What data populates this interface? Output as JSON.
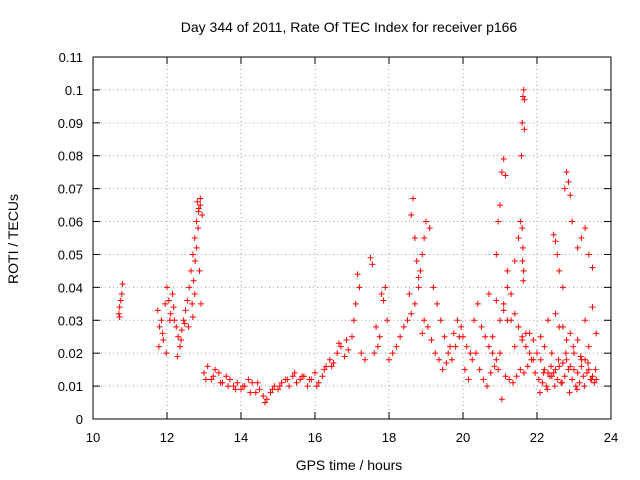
{
  "chart_data": {
    "type": "scatter",
    "title": "Day 344 of 2011, Rate Of TEC Index for receiver p166",
    "xlabel": "GPS time / hours",
    "ylabel": "ROTI / TECUs",
    "xlim": [
      10,
      24
    ],
    "ylim": [
      0,
      0.11
    ],
    "xticks": [
      10,
      12,
      14,
      16,
      18,
      20,
      22,
      24
    ],
    "xtick_labels": [
      "10",
      "12",
      "14",
      "16",
      "18",
      "20",
      "22",
      "24"
    ],
    "yticks": [
      0,
      0.01,
      0.02,
      0.03,
      0.04,
      0.05,
      0.06,
      0.07,
      0.08,
      0.09,
      0.1,
      0.11
    ],
    "ytick_labels": [
      "0",
      "0.01",
      "0.02",
      "0.03",
      "0.04",
      "0.05",
      "0.06",
      "0.07",
      "0.08",
      "0.09",
      "0.1",
      "0.11"
    ],
    "grid": true,
    "marker": "+",
    "color": "#ff0000",
    "series": [
      {
        "name": "ROTI",
        "x": [
          10.7,
          10.72,
          10.75,
          10.78,
          10.8,
          10.72,
          11.75,
          11.8,
          11.85,
          11.9,
          11.95,
          12.0,
          12.05,
          12.1,
          12.15,
          12.2,
          12.25,
          12.3,
          12.35,
          12.4,
          12.45,
          12.5,
          12.55,
          12.6,
          12.65,
          12.7,
          12.75,
          12.8,
          12.85,
          12.9,
          12.95,
          11.78,
          11.88,
          11.98,
          12.08,
          12.18,
          12.28,
          12.38,
          12.48,
          12.58,
          12.68,
          12.72,
          12.76,
          12.8,
          12.84,
          12.88,
          12.92,
          12.82,
          12.86,
          12.9,
          12.75,
          12.7,
          13.0,
          13.1,
          13.2,
          13.3,
          13.4,
          13.5,
          13.6,
          13.7,
          13.8,
          13.9,
          14.0,
          14.1,
          14.2,
          14.3,
          14.4,
          14.5,
          14.6,
          14.7,
          14.8,
          14.9,
          15.0,
          15.1,
          15.2,
          15.3,
          15.4,
          15.5,
          15.6,
          15.7,
          15.8,
          15.9,
          16.0,
          16.1,
          16.2,
          16.3,
          16.4,
          16.5,
          16.6,
          16.7,
          16.8,
          16.9,
          13.05,
          13.25,
          13.45,
          13.65,
          13.85,
          14.05,
          14.25,
          14.45,
          14.65,
          14.85,
          15.05,
          15.25,
          15.45,
          15.65,
          15.85,
          16.05,
          16.25,
          16.45,
          16.65,
          16.85,
          17.0,
          17.05,
          17.1,
          17.15,
          17.2,
          17.5,
          17.55,
          17.6,
          17.7,
          17.75,
          17.8,
          17.85,
          17.9,
          17.95,
          17.65,
          17.25,
          17.35,
          18.0,
          18.1,
          18.2,
          18.3,
          18.4,
          18.5,
          18.6,
          18.7,
          18.8,
          18.85,
          18.9,
          18.95,
          19.0,
          19.1,
          19.2,
          19.3,
          19.4,
          19.5,
          19.6,
          19.7,
          19.8,
          19.9,
          18.55,
          18.6,
          18.65,
          18.7,
          18.75,
          18.8,
          18.9,
          18.95,
          19.05,
          19.15,
          19.25,
          19.35,
          19.45,
          19.55,
          19.65,
          19.75,
          19.85,
          19.95,
          20.0,
          20.1,
          20.2,
          20.3,
          20.4,
          20.5,
          20.6,
          20.7,
          20.8,
          20.9,
          21.0,
          21.1,
          21.2,
          21.3,
          21.4,
          21.5,
          21.6,
          21.7,
          21.8,
          21.9,
          20.05,
          20.15,
          20.25,
          20.35,
          20.45,
          20.55,
          20.65,
          20.75,
          20.85,
          20.95,
          21.05,
          21.15,
          21.25,
          21.35,
          21.45,
          21.55,
          21.65,
          21.75,
          21.85,
          21.95,
          20.9,
          20.95,
          21.0,
          21.05,
          21.1,
          21.15,
          21.2,
          21.4,
          21.5,
          21.55,
          21.6,
          21.62,
          21.64,
          21.66,
          21.58,
          21.6,
          21.62,
          21.64,
          21.66,
          21.63,
          21.61,
          20.8,
          21.0,
          21.2,
          21.4,
          21.6,
          21.8,
          20.7,
          20.9,
          21.1,
          21.3,
          21.5,
          21.7,
          21.9,
          22.0,
          22.1,
          22.2,
          22.3,
          22.4,
          22.5,
          22.6,
          22.7,
          22.8,
          22.9,
          23.0,
          23.1,
          23.2,
          23.3,
          23.4,
          23.5,
          23.6,
          22.05,
          22.15,
          22.25,
          22.35,
          22.45,
          22.55,
          22.65,
          22.75,
          22.85,
          22.95,
          23.05,
          23.15,
          23.25,
          23.35,
          23.45,
          23.55,
          22.45,
          22.5,
          22.55,
          22.6,
          22.7,
          22.75,
          22.8,
          22.85,
          22.9,
          22.95,
          23.1,
          23.2,
          23.3,
          23.4,
          23.5,
          22.1,
          22.3,
          22.5,
          22.7,
          22.9,
          23.1,
          23.3,
          23.5,
          22.2,
          22.4,
          22.6,
          22.8,
          23.0,
          23.2,
          23.4,
          23.6,
          22.08,
          22.28,
          22.48,
          22.68,
          22.88,
          23.08,
          23.28,
          23.48,
          22.18,
          22.38,
          22.58,
          22.78,
          22.98,
          23.18,
          23.38,
          23.58
        ],
        "y": [
          0.032,
          0.034,
          0.036,
          0.038,
          0.041,
          0.031,
          0.033,
          0.028,
          0.03,
          0.024,
          0.035,
          0.04,
          0.036,
          0.032,
          0.038,
          0.03,
          0.028,
          0.025,
          0.022,
          0.027,
          0.03,
          0.033,
          0.036,
          0.04,
          0.045,
          0.05,
          0.055,
          0.06,
          0.063,
          0.065,
          0.062,
          0.022,
          0.026,
          0.02,
          0.03,
          0.034,
          0.019,
          0.024,
          0.029,
          0.028,
          0.035,
          0.042,
          0.048,
          0.052,
          0.058,
          0.045,
          0.035,
          0.066,
          0.064,
          0.067,
          0.038,
          0.031,
          0.014,
          0.016,
          0.012,
          0.015,
          0.014,
          0.011,
          0.013,
          0.012,
          0.01,
          0.011,
          0.009,
          0.01,
          0.012,
          0.011,
          0.008,
          0.009,
          0.007,
          0.006,
          0.008,
          0.01,
          0.009,
          0.011,
          0.012,
          0.01,
          0.013,
          0.011,
          0.012,
          0.013,
          0.01,
          0.012,
          0.014,
          0.011,
          0.013,
          0.016,
          0.018,
          0.017,
          0.02,
          0.022,
          0.019,
          0.021,
          0.012,
          0.013,
          0.011,
          0.01,
          0.009,
          0.01,
          0.008,
          0.011,
          0.005,
          0.009,
          0.01,
          0.012,
          0.014,
          0.013,
          0.012,
          0.01,
          0.015,
          0.016,
          0.023,
          0.024,
          0.025,
          0.03,
          0.035,
          0.044,
          0.04,
          0.049,
          0.047,
          0.02,
          0.022,
          0.025,
          0.038,
          0.036,
          0.04,
          0.03,
          0.028,
          0.02,
          0.018,
          0.018,
          0.02,
          0.022,
          0.025,
          0.028,
          0.03,
          0.032,
          0.035,
          0.04,
          0.045,
          0.05,
          0.055,
          0.06,
          0.058,
          0.04,
          0.035,
          0.03,
          0.025,
          0.02,
          0.018,
          0.022,
          0.025,
          0.038,
          0.062,
          0.067,
          0.055,
          0.048,
          0.043,
          0.026,
          0.03,
          0.028,
          0.024,
          0.02,
          0.018,
          0.015,
          0.017,
          0.022,
          0.026,
          0.03,
          0.028,
          0.025,
          0.022,
          0.02,
          0.03,
          0.035,
          0.028,
          0.025,
          0.022,
          0.02,
          0.018,
          0.03,
          0.035,
          0.04,
          0.038,
          0.032,
          0.028,
          0.025,
          0.022,
          0.02,
          0.018,
          0.015,
          0.012,
          0.018,
          0.02,
          0.015,
          0.012,
          0.01,
          0.014,
          0.016,
          0.015,
          0.006,
          0.013,
          0.012,
          0.011,
          0.013,
          0.015,
          0.014,
          0.016,
          0.018,
          0.014,
          0.05,
          0.06,
          0.065,
          0.075,
          0.079,
          0.074,
          0.045,
          0.048,
          0.055,
          0.06,
          0.09,
          0.098,
          0.1,
          0.097,
          0.08,
          0.058,
          0.052,
          0.045,
          0.088,
          0.042,
          0.048,
          0.025,
          0.02,
          0.03,
          0.022,
          0.024,
          0.026,
          0.038,
          0.036,
          0.033,
          0.03,
          0.028,
          0.026,
          0.024,
          0.02,
          0.018,
          0.015,
          0.014,
          0.013,
          0.015,
          0.016,
          0.017,
          0.018,
          0.016,
          0.015,
          0.014,
          0.016,
          0.018,
          0.015,
          0.013,
          0.012,
          0.012,
          0.011,
          0.01,
          0.013,
          0.014,
          0.012,
          0.011,
          0.013,
          0.015,
          0.012,
          0.01,
          0.011,
          0.013,
          0.014,
          0.012,
          0.011,
          0.056,
          0.054,
          0.05,
          0.045,
          0.04,
          0.07,
          0.075,
          0.072,
          0.068,
          0.06,
          0.052,
          0.055,
          0.058,
          0.05,
          0.046,
          0.025,
          0.03,
          0.032,
          0.028,
          0.026,
          0.024,
          0.03,
          0.034,
          0.022,
          0.02,
          0.028,
          0.024,
          0.02,
          0.018,
          0.022,
          0.026,
          0.008,
          0.009,
          0.01,
          0.011,
          0.008,
          0.009,
          0.01,
          0.012,
          0.014,
          0.016,
          0.018,
          0.02,
          0.022,
          0.019,
          0.017,
          0.015
        ]
      }
    ]
  }
}
